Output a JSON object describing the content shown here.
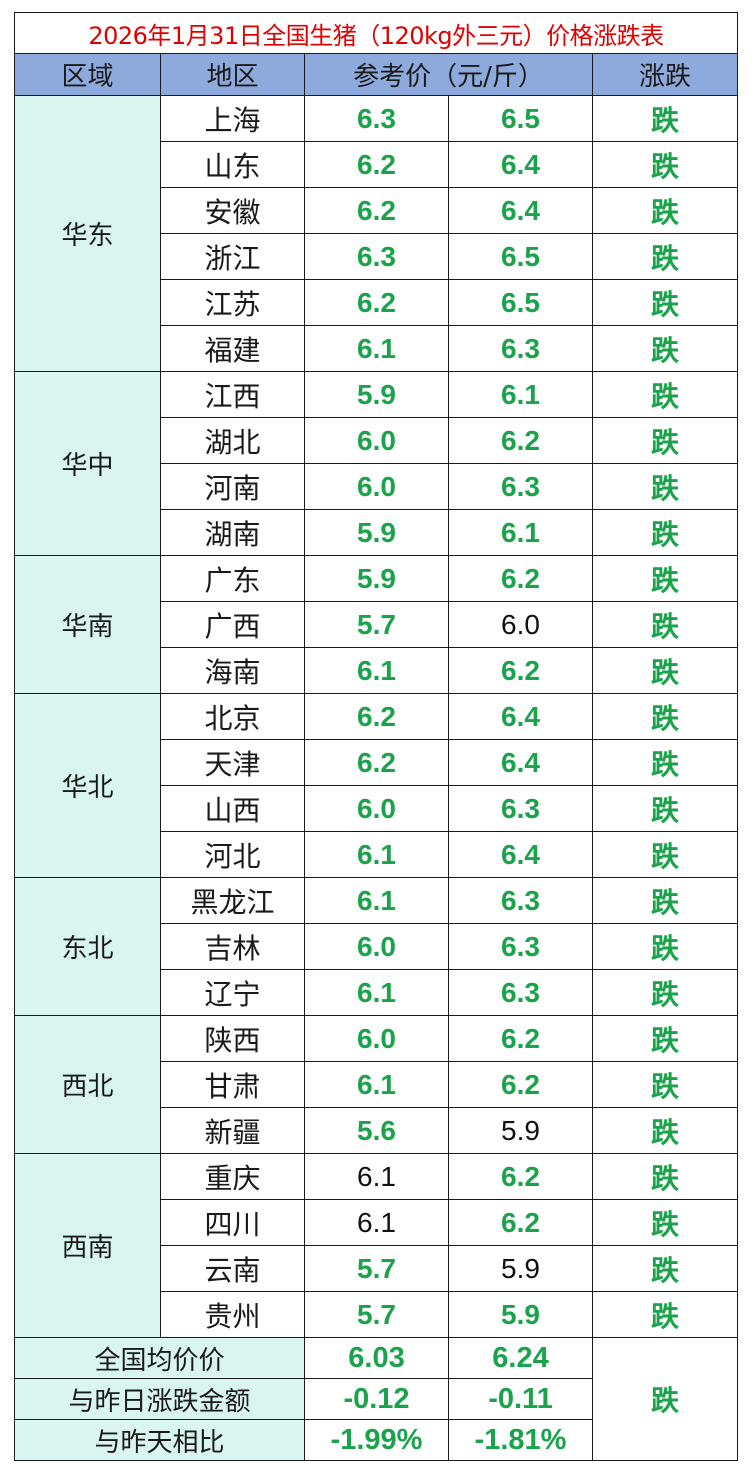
{
  "title": "2026年1月31日全国生猪（120kg外三元）价格涨跌表",
  "headers": {
    "zone": "区域",
    "area": "地区",
    "price": "参考价（元/斤）",
    "change": "涨跌"
  },
  "colors": {
    "header_bg": "#8ea9db",
    "region_bg": "#d9f5ef",
    "title_red": "#e00000",
    "fall_green": "#1aa34a"
  },
  "regions": [
    {
      "name": "华东",
      "rows": [
        {
          "area": "上海",
          "low": "6.3",
          "high": "6.5",
          "low_green": true,
          "high_green": true,
          "change": "跌"
        },
        {
          "area": "山东",
          "low": "6.2",
          "high": "6.4",
          "low_green": true,
          "high_green": true,
          "change": "跌"
        },
        {
          "area": "安徽",
          "low": "6.2",
          "high": "6.4",
          "low_green": true,
          "high_green": true,
          "change": "跌"
        },
        {
          "area": "浙江",
          "low": "6.3",
          "high": "6.5",
          "low_green": true,
          "high_green": true,
          "change": "跌"
        },
        {
          "area": "江苏",
          "low": "6.2",
          "high": "6.5",
          "low_green": true,
          "high_green": true,
          "change": "跌"
        },
        {
          "area": "福建",
          "low": "6.1",
          "high": "6.3",
          "low_green": true,
          "high_green": true,
          "change": "跌"
        }
      ]
    },
    {
      "name": "华中",
      "rows": [
        {
          "area": "江西",
          "low": "5.9",
          "high": "6.1",
          "low_green": true,
          "high_green": true,
          "change": "跌"
        },
        {
          "area": "湖北",
          "low": "6.0",
          "high": "6.2",
          "low_green": true,
          "high_green": true,
          "change": "跌"
        },
        {
          "area": "河南",
          "low": "6.0",
          "high": "6.3",
          "low_green": true,
          "high_green": true,
          "change": "跌"
        },
        {
          "area": "湖南",
          "low": "5.9",
          "high": "6.1",
          "low_green": true,
          "high_green": true,
          "change": "跌"
        }
      ]
    },
    {
      "name": "华南",
      "rows": [
        {
          "area": "广东",
          "low": "5.9",
          "high": "6.2",
          "low_green": true,
          "high_green": true,
          "change": "跌"
        },
        {
          "area": "广西",
          "low": "5.7",
          "high": "6.0",
          "low_green": true,
          "high_green": false,
          "change": "跌"
        },
        {
          "area": "海南",
          "low": "6.1",
          "high": "6.2",
          "low_green": true,
          "high_green": true,
          "change": "跌"
        }
      ]
    },
    {
      "name": "华北",
      "rows": [
        {
          "area": "北京",
          "low": "6.2",
          "high": "6.4",
          "low_green": true,
          "high_green": true,
          "change": "跌"
        },
        {
          "area": "天津",
          "low": "6.2",
          "high": "6.4",
          "low_green": true,
          "high_green": true,
          "change": "跌"
        },
        {
          "area": "山西",
          "low": "6.0",
          "high": "6.3",
          "low_green": true,
          "high_green": true,
          "change": "跌"
        },
        {
          "area": "河北",
          "low": "6.1",
          "high": "6.4",
          "low_green": true,
          "high_green": true,
          "change": "跌"
        }
      ]
    },
    {
      "name": "东北",
      "rows": [
        {
          "area": "黑龙江",
          "low": "6.1",
          "high": "6.3",
          "low_green": true,
          "high_green": true,
          "change": "跌"
        },
        {
          "area": "吉林",
          "low": "6.0",
          "high": "6.3",
          "low_green": true,
          "high_green": true,
          "change": "跌"
        },
        {
          "area": "辽宁",
          "low": "6.1",
          "high": "6.3",
          "low_green": true,
          "high_green": true,
          "change": "跌"
        }
      ]
    },
    {
      "name": "西北",
      "rows": [
        {
          "area": "陕西",
          "low": "6.0",
          "high": "6.2",
          "low_green": true,
          "high_green": true,
          "change": "跌"
        },
        {
          "area": "甘肃",
          "low": "6.1",
          "high": "6.2",
          "low_green": true,
          "high_green": true,
          "change": "跌"
        },
        {
          "area": "新疆",
          "low": "5.6",
          "high": "5.9",
          "low_green": true,
          "high_green": false,
          "change": "跌"
        }
      ]
    },
    {
      "name": "西南",
      "rows": [
        {
          "area": "重庆",
          "low": "6.1",
          "high": "6.2",
          "low_green": false,
          "high_green": true,
          "change": "跌"
        },
        {
          "area": "四川",
          "low": "6.1",
          "high": "6.2",
          "low_green": false,
          "high_green": true,
          "change": "跌"
        },
        {
          "area": "云南",
          "low": "5.7",
          "high": "5.9",
          "low_green": true,
          "high_green": false,
          "change": "跌"
        },
        {
          "area": "贵州",
          "low": "5.7",
          "high": "5.9",
          "low_green": true,
          "high_green": true,
          "change": "跌"
        }
      ]
    }
  ],
  "summary": {
    "avg_label": "全国均价价",
    "avg_low": "6.03",
    "avg_high": "6.24",
    "diff_label": "与昨日涨跌金额",
    "diff_low": "-0.12",
    "diff_high": "-0.11",
    "pct_label": "与昨天相比",
    "pct_low": "-1.99%",
    "pct_high": "-1.81%",
    "change": "跌"
  }
}
